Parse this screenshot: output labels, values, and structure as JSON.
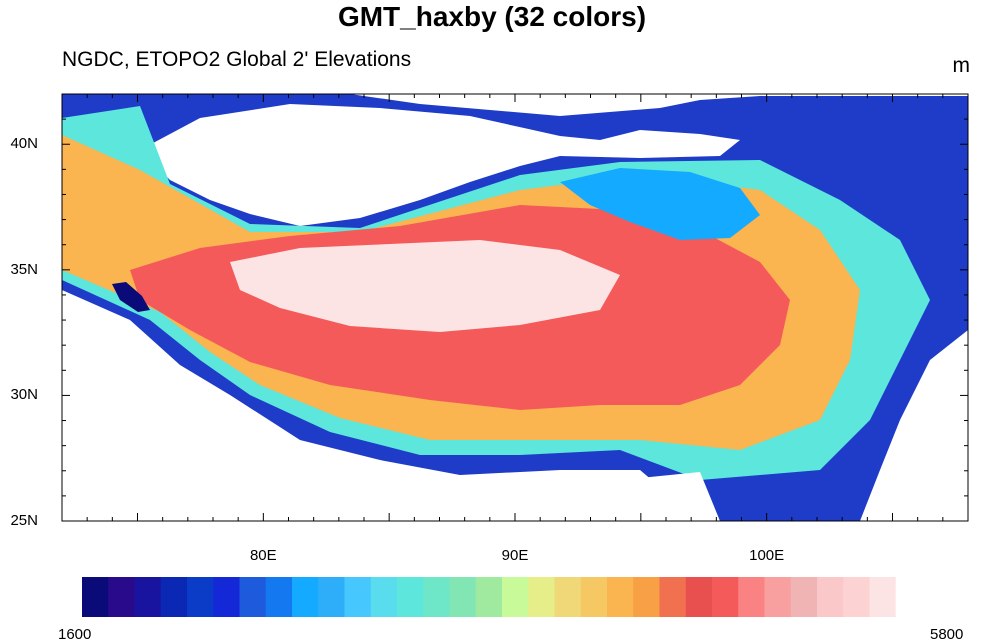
{
  "title": "GMT_haxby (32 colors)",
  "left_string": "NGDC, ETOPO2 Global 2' Elevations",
  "right_string": "m",
  "map": {
    "lon_range": [
      72,
      108
    ],
    "lat_range": [
      25,
      42
    ],
    "x_tick_labels": [
      {
        "lon": 80,
        "label": "80E"
      },
      {
        "lon": 90,
        "label": "90E"
      },
      {
        "lon": 100,
        "label": "100E"
      }
    ],
    "y_tick_labels": [
      {
        "lat": 40,
        "label": "40N"
      },
      {
        "lat": 35,
        "label": "35N"
      },
      {
        "lat": 30,
        "label": "30N"
      },
      {
        "lat": 25,
        "label": "25N"
      }
    ]
  },
  "colorbar": {
    "min_label": "1600",
    "max_label": "5800",
    "colors": [
      "#0a0a79",
      "#280a8a",
      "#1914a0",
      "#0a28b4",
      "#0a3cc8",
      "#1428d8",
      "#1e5adc",
      "#1478f0",
      "#14aaff",
      "#2eaef8",
      "#46c8ff",
      "#58dcee",
      "#5ce6dc",
      "#6ee6c8",
      "#82e6b4",
      "#a0eaa0",
      "#c8fa9a",
      "#e6ee8a",
      "#f0d878",
      "#f5c864",
      "#fab450",
      "#f8a046",
      "#f07050",
      "#e85050",
      "#f55a5a",
      "#fa8282",
      "#f8a0a0",
      "#f0b4b4",
      "#fac8c8",
      "#fcd2d2",
      "#fde4e4",
      "#ffffff"
    ]
  }
}
